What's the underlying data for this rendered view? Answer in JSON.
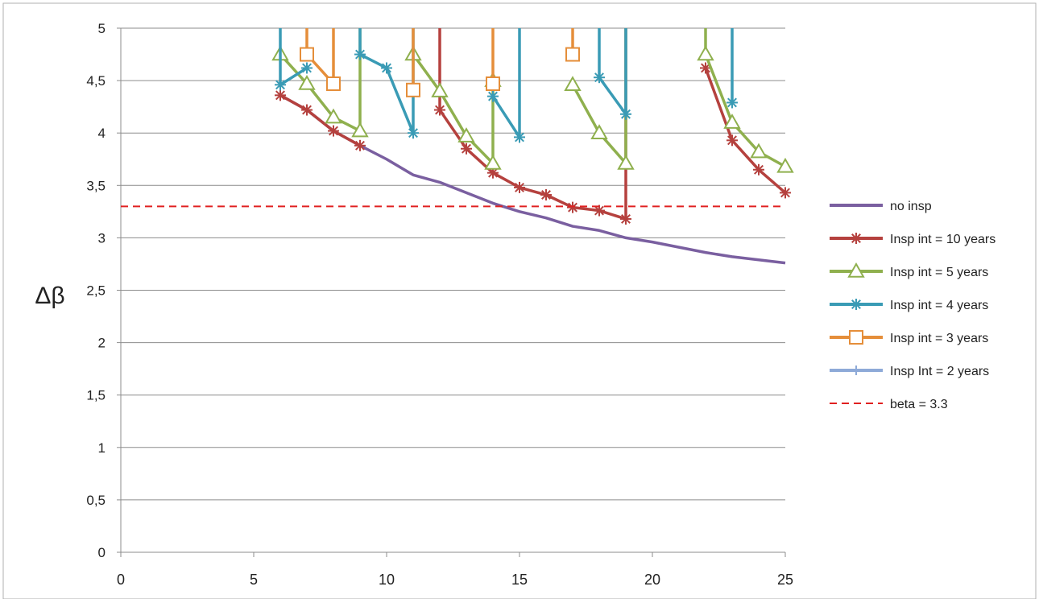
{
  "chart_data": {
    "type": "line",
    "title": "",
    "xlabel": "",
    "ylabel": "Δβ",
    "xlim": [
      0,
      25
    ],
    "ylim": [
      0,
      5
    ],
    "x_ticks": [
      0,
      5,
      10,
      15,
      20,
      25
    ],
    "y_ticks": [
      0,
      0.5,
      1,
      1.5,
      2,
      2.5,
      3,
      3.5,
      4,
      4.5,
      5
    ],
    "x_tick_labels": [
      "0",
      "5",
      "10",
      "15",
      "20",
      "25"
    ],
    "y_tick_labels": [
      "0",
      "0,5",
      "1",
      "1,5",
      "2",
      "2,5",
      "3",
      "3,5",
      "4",
      "4,5",
      "5"
    ],
    "grid": "horizontal",
    "legend_position": "right",
    "series": [
      {
        "name": "no insp",
        "color": "#7a5fa0",
        "marker": "none",
        "points": [
          [
            6,
            4.36
          ],
          [
            7,
            4.22
          ],
          [
            8,
            4.02
          ],
          [
            9,
            3.88
          ],
          [
            10,
            3.75
          ],
          [
            11,
            3.6
          ],
          [
            12,
            3.53
          ],
          [
            13,
            3.43
          ],
          [
            14,
            3.33
          ],
          [
            15,
            3.25
          ],
          [
            16,
            3.19
          ],
          [
            17,
            3.11
          ],
          [
            18,
            3.07
          ],
          [
            19,
            3.0
          ],
          [
            20,
            2.96
          ],
          [
            21,
            2.91
          ],
          [
            22,
            2.86
          ],
          [
            23,
            2.82
          ],
          [
            24,
            2.79
          ],
          [
            25,
            2.76
          ]
        ]
      },
      {
        "name": "Insp int = 10 years",
        "color": "#b5413e",
        "marker": "star",
        "points": [
          [
            6,
            4.36
          ],
          [
            7,
            4.22
          ],
          [
            8,
            4.02
          ],
          [
            9,
            3.88
          ],
          [
            null,
            null
          ],
          [
            12,
            5.0
          ],
          [
            12,
            4.22
          ],
          [
            13,
            3.85
          ],
          [
            14,
            3.62
          ],
          [
            15,
            3.48
          ],
          [
            16,
            3.41
          ],
          [
            17,
            3.29
          ],
          [
            18,
            3.26
          ],
          [
            19,
            3.18
          ],
          [
            19,
            5.0
          ],
          [
            null,
            null
          ],
          [
            22,
            4.62
          ],
          [
            23,
            3.93
          ],
          [
            24,
            3.65
          ],
          [
            25,
            3.43
          ]
        ]
      },
      {
        "name": "Insp int = 5 years",
        "color": "#8fb04e",
        "marker": "triangle",
        "points": [
          [
            6,
            4.75
          ],
          [
            7,
            4.47
          ],
          [
            8,
            4.15
          ],
          [
            9,
            4.02
          ],
          [
            9,
            5.0
          ],
          [
            null,
            null
          ],
          [
            11,
            4.75
          ],
          [
            12,
            4.4
          ],
          [
            13,
            3.97
          ],
          [
            14,
            3.71
          ],
          [
            14,
            4.5
          ],
          [
            null,
            null
          ],
          [
            17,
            4.46
          ],
          [
            18,
            4.0
          ],
          [
            19,
            3.71
          ],
          [
            19,
            5.0
          ],
          [
            null,
            null
          ],
          [
            22,
            5.0
          ],
          [
            22,
            4.75
          ],
          [
            23,
            4.1
          ],
          [
            24,
            3.82
          ],
          [
            25,
            3.68
          ]
        ]
      },
      {
        "name": "Insp int = 4 years",
        "color": "#3a9bb5",
        "marker": "star",
        "points": [
          [
            6,
            5.0
          ],
          [
            6,
            4.46
          ],
          [
            7,
            4.62
          ],
          [
            null,
            null
          ],
          [
            9,
            5.0
          ],
          [
            9,
            4.75
          ],
          [
            10,
            4.62
          ],
          [
            11,
            4.0
          ],
          [
            11,
            5.0
          ],
          [
            null,
            null
          ],
          [
            14,
            4.35
          ],
          [
            15,
            3.96
          ],
          [
            15,
            5.0
          ],
          [
            null,
            null
          ],
          [
            18,
            5.0
          ],
          [
            18,
            4.53
          ],
          [
            19,
            4.18
          ],
          [
            19,
            5.0
          ],
          [
            null,
            null
          ],
          [
            23,
            5.0
          ],
          [
            23,
            4.29
          ]
        ]
      },
      {
        "name": "Insp int = 3 years",
        "color": "#e58e3a",
        "marker": "square",
        "points": [
          [
            7,
            5.0
          ],
          [
            7,
            4.75
          ],
          [
            8,
            4.47
          ],
          [
            8,
            5.0
          ],
          [
            null,
            null
          ],
          [
            11,
            5.0
          ],
          [
            11,
            4.41
          ],
          [
            null,
            null
          ],
          [
            14,
            5.0
          ],
          [
            14,
            4.47
          ],
          [
            null,
            null
          ],
          [
            17,
            5.0
          ],
          [
            17,
            4.75
          ]
        ]
      },
      {
        "name": "Insp Int = 2 years",
        "color": "#8eaad8",
        "marker": "plus",
        "points": []
      },
      {
        "name": "beta = 3.3",
        "color": "#e02020",
        "marker": "none",
        "dashed": true,
        "points": [
          [
            0,
            3.3
          ],
          [
            25,
            3.3
          ]
        ]
      }
    ]
  }
}
